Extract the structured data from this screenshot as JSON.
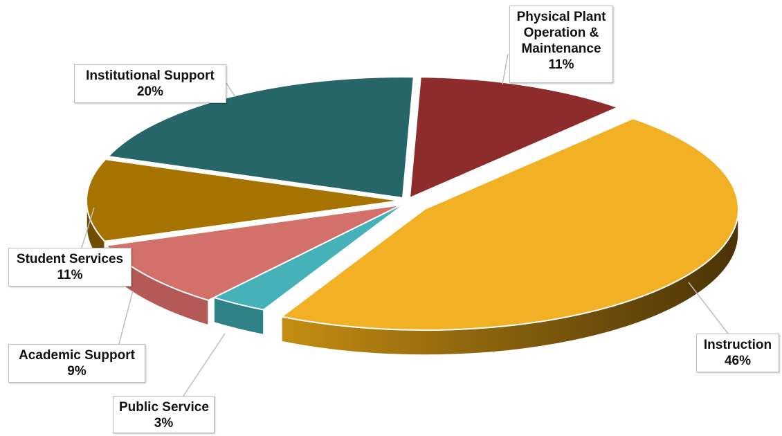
{
  "chart_data": {
    "type": "pie",
    "style": "3d-exploded-pie",
    "title": "",
    "slices": [
      {
        "label": "Physical Plant Operation & Maintenance",
        "label_lines": [
          "Physical Plant",
          "Operation &",
          "Maintenance"
        ],
        "value": 11,
        "value_text": "11%",
        "color": "#8e2c2c"
      },
      {
        "label": "Instruction",
        "label_lines": [
          "Instruction"
        ],
        "value": 46,
        "value_text": "46%",
        "color": "#f2b124"
      },
      {
        "label": "Public Service",
        "label_lines": [
          "Public Service"
        ],
        "value": 3,
        "value_text": "3%",
        "color": "#44b2b8"
      },
      {
        "label": "Academic Support",
        "label_lines": [
          "Academic Support"
        ],
        "value": 9,
        "value_text": "9%",
        "color": "#d4706a"
      },
      {
        "label": "Student Services",
        "label_lines": [
          "Student Services"
        ],
        "value": 11,
        "value_text": "11%",
        "color": "#a67300"
      },
      {
        "label": "Institutional Support",
        "label_lines": [
          "Institutional Support"
        ],
        "value": 20,
        "value_text": "20%",
        "color": "#276668"
      }
    ],
    "legend": "none",
    "data_labels": "callouts"
  }
}
